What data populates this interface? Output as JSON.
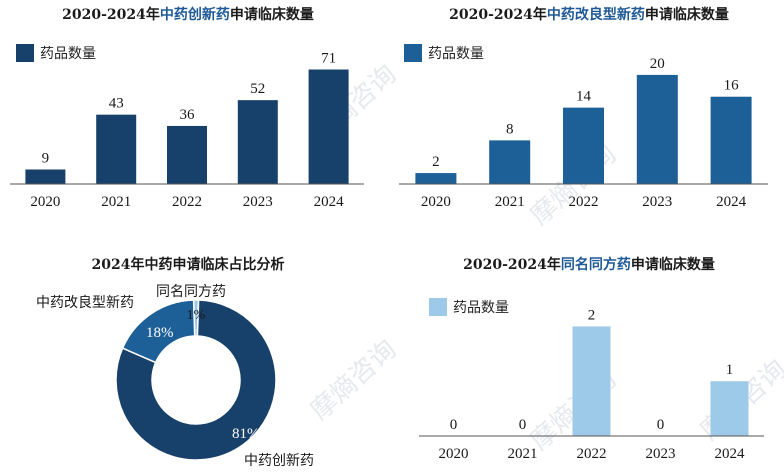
{
  "watermark": "摩熵咨询",
  "charts": [
    {
      "title_prefix": "2020-2024年",
      "title_highlight": "中药创新药",
      "title_suffix": "申请临床数量",
      "chart_data": {
        "type": "bar",
        "categories": [
          "2020",
          "2021",
          "2022",
          "2023",
          "2024"
        ],
        "series": [
          {
            "name": "药品数量",
            "values": [
              9,
              43,
              36,
              52,
              71
            ]
          }
        ],
        "ylim": [
          0,
          80
        ],
        "legend": "top-left",
        "color": "#17406a"
      }
    },
    {
      "title_prefix": "2020-2024年",
      "title_highlight": "中药改良型新药",
      "title_suffix": "申请临床数量",
      "chart_data": {
        "type": "bar",
        "categories": [
          "2020",
          "2021",
          "2022",
          "2023",
          "2024"
        ],
        "series": [
          {
            "name": "药品数量",
            "values": [
              2,
              8,
              14,
              20,
              16
            ]
          }
        ],
        "ylim": [
          0,
          22
        ],
        "legend": "top-left",
        "color": "#1d5f97"
      }
    },
    {
      "title": "2024年中药申请临床占比分析",
      "chart_data": {
        "type": "pie",
        "donut": true,
        "slices": [
          {
            "label": "中药创新药",
            "value": 81,
            "text": "81%",
            "color": "#17406a"
          },
          {
            "label": "中药改良型新药",
            "value": 18,
            "text": "18%",
            "color": "#1d5f97"
          },
          {
            "label": "同名同方药",
            "value": 1,
            "text": "1%",
            "color": "#9ecae9"
          }
        ]
      }
    },
    {
      "title_prefix": "2020-2024年",
      "title_highlight": "同名同方药",
      "title_suffix": "申请临床数量",
      "chart_data": {
        "type": "bar",
        "categories": [
          "2020",
          "2021",
          "2022",
          "2023",
          "2024"
        ],
        "series": [
          {
            "name": "药品数量",
            "values": [
              0,
              0,
              2,
              0,
              1
            ]
          }
        ],
        "ylim": [
          0,
          2.3
        ],
        "legend": "top-left",
        "color": "#9ecae9"
      }
    }
  ]
}
